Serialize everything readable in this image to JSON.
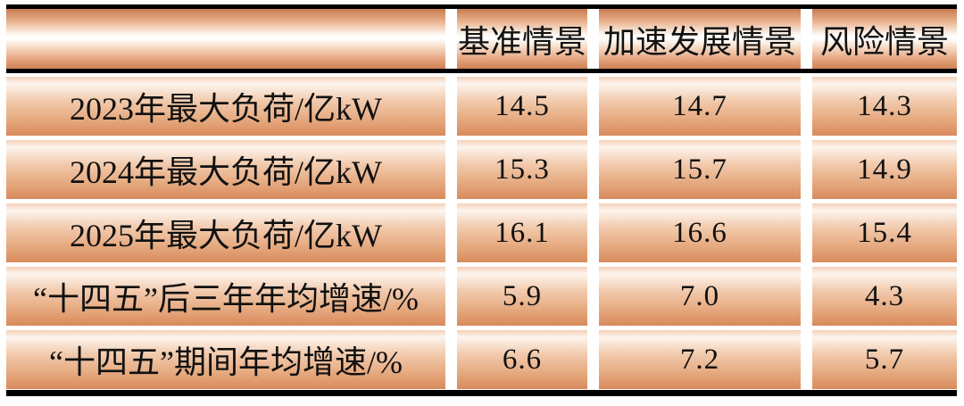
{
  "table": {
    "columns": [
      "",
      "基准情景",
      "加速发展情景",
      "风险情景"
    ],
    "rows": [
      {
        "label": "2023年最大负荷/亿kW",
        "values": [
          "14.5",
          "14.7",
          "14.3"
        ]
      },
      {
        "label": "2024年最大负荷/亿kW",
        "values": [
          "15.3",
          "15.7",
          "14.9"
        ]
      },
      {
        "label": "2025年最大负荷/亿kW",
        "values": [
          "16.1",
          "16.6",
          "15.4"
        ]
      },
      {
        "label": "“十四五”后三年年均增速/%",
        "values": [
          "5.9",
          "7.0",
          "4.3"
        ]
      },
      {
        "label": "“十四五”期间年均增速/%",
        "values": [
          "6.6",
          "7.2",
          "5.7"
        ]
      }
    ]
  },
  "chart_data": {
    "type": "table",
    "columns": [
      "",
      "基准情景",
      "加速发展情景",
      "风险情景"
    ],
    "rows": [
      {
        "label": "2023年最大负荷/亿kW",
        "values": [
          14.5,
          14.7,
          14.3
        ]
      },
      {
        "label": "2024年最大负荷/亿kW",
        "values": [
          15.3,
          15.7,
          14.9
        ]
      },
      {
        "label": "2025年最大负荷/亿kW",
        "values": [
          16.1,
          16.6,
          15.4
        ]
      },
      {
        "label": "“十四五”后三年年均增速/%",
        "values": [
          5.9,
          7.0,
          4.3
        ]
      },
      {
        "label": "“十四五”期间年均增速/%",
        "values": [
          6.6,
          7.2,
          5.7
        ]
      }
    ]
  },
  "colors": {
    "cell_copper": "#d0825a",
    "cell_highlight": "#ffffff",
    "rule": "#000000",
    "text": "#111111"
  }
}
